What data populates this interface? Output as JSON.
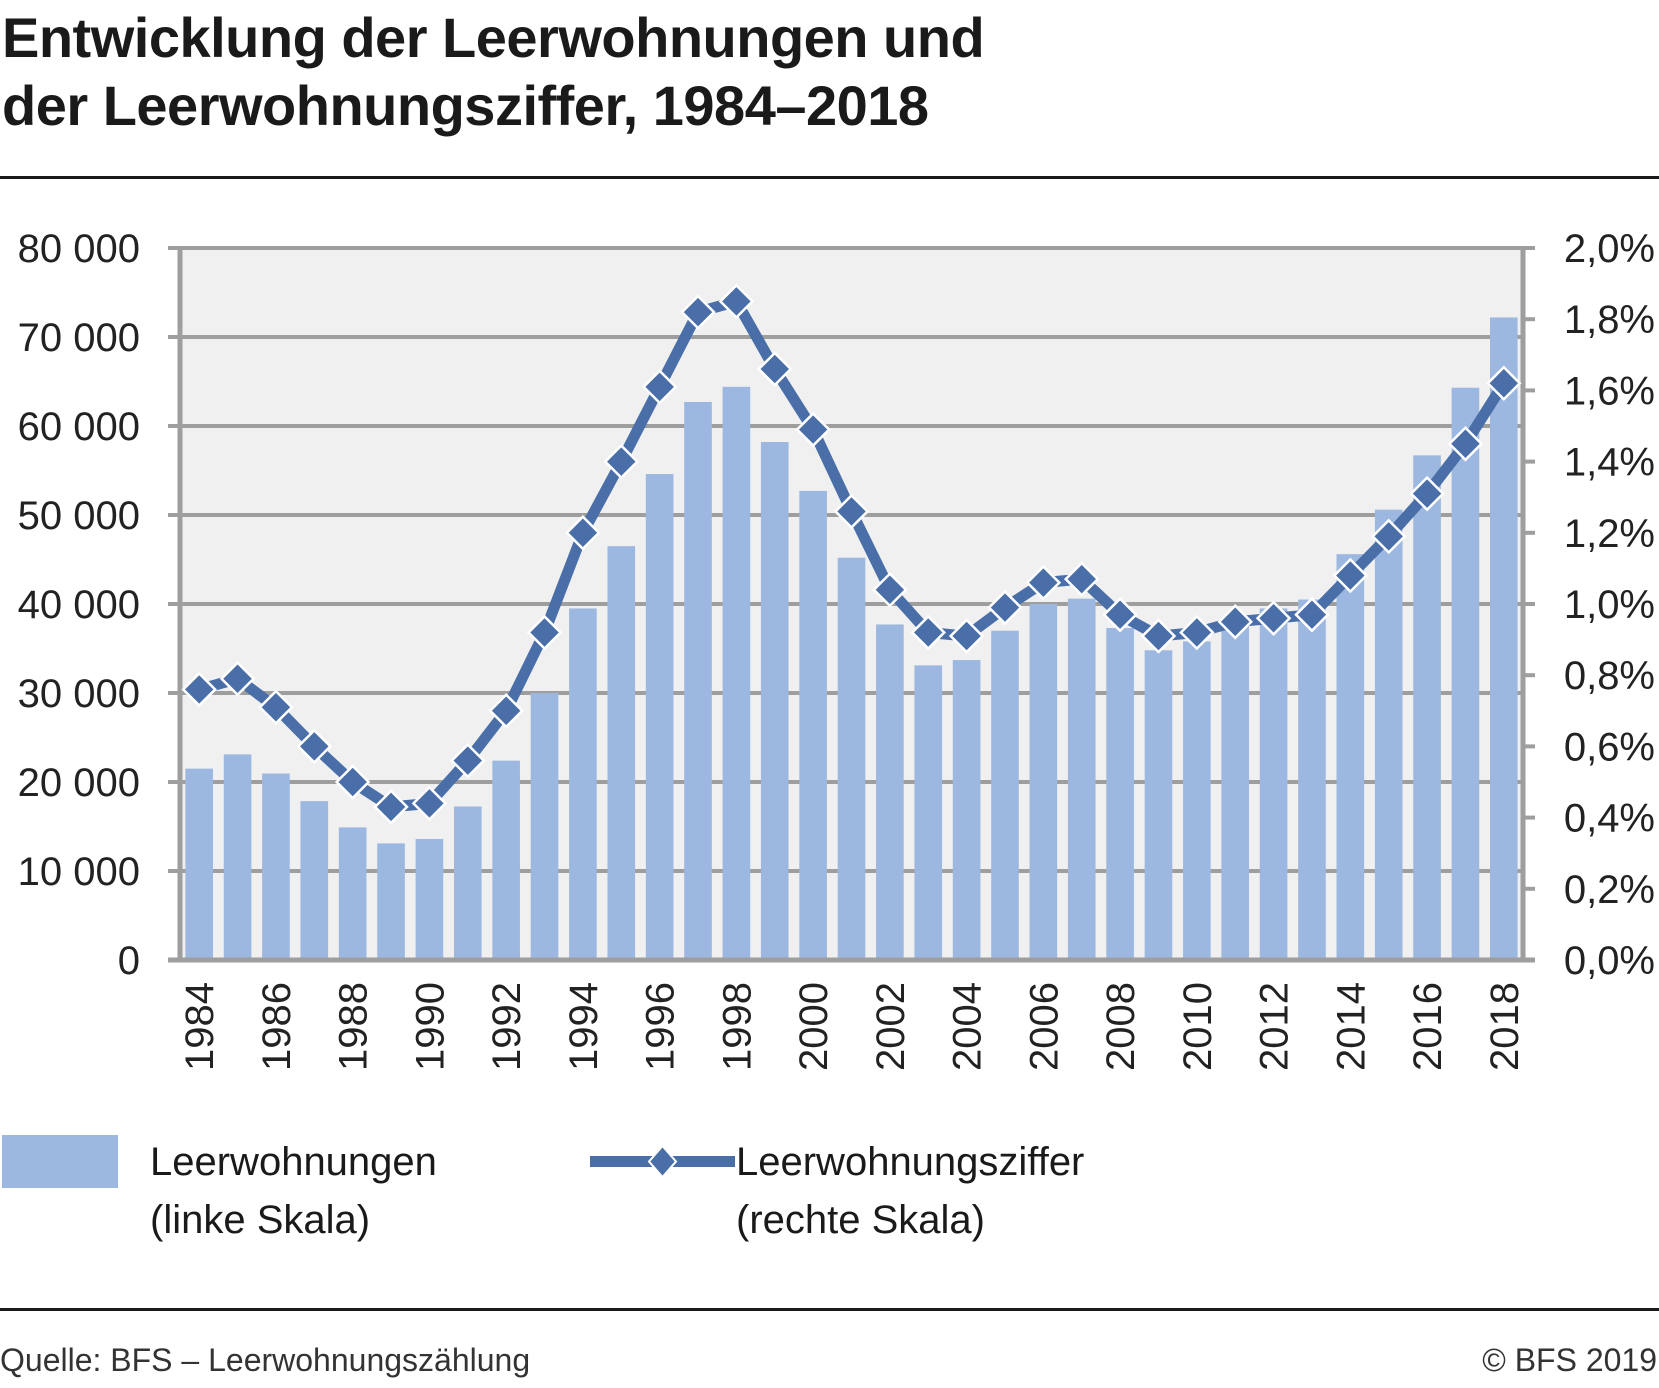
{
  "title_line1": "Entwicklung der Leerwohnungen und",
  "title_line2": "der Leerwohnungsziffer, 1984–2018",
  "legend": {
    "bars_label": "Leerwohnungen",
    "bars_sublabel": "(linke Skala)",
    "line_label": "Leerwohnungsziffer",
    "line_sublabel": "(rechte Skala)"
  },
  "footer": {
    "source": "Quelle: BFS – Leerwohnungszählung",
    "copyright": "© BFS 2019"
  },
  "colors": {
    "bars": "#9db8e0",
    "line": "#4a6fa8",
    "plot_bg": "#f0f0f0",
    "grid": "#9e9e9e"
  },
  "chart_data": {
    "type": "bar+line",
    "title": "Entwicklung der Leerwohnungen und der Leerwohnungsziffer, 1984–2018",
    "categories": [
      1984,
      1985,
      1986,
      1987,
      1988,
      1989,
      1990,
      1991,
      1992,
      1993,
      1994,
      1995,
      1996,
      1997,
      1998,
      1999,
      2000,
      2001,
      2002,
      2003,
      2004,
      2005,
      2006,
      2007,
      2008,
      2009,
      2010,
      2011,
      2012,
      2013,
      2014,
      2015,
      2016,
      2017,
      2018
    ],
    "x_tick_labels": [
      "1984",
      "1986",
      "1988",
      "1990",
      "1992",
      "1994",
      "1996",
      "1998",
      "2000",
      "2002",
      "2004",
      "2006",
      "2008",
      "2010",
      "2012",
      "2014",
      "2016",
      "2018"
    ],
    "series": [
      {
        "name": "Leerwohnungen (linke Skala)",
        "type": "bar",
        "axis": "left",
        "values": [
          21500,
          23100,
          20950,
          17850,
          14900,
          13100,
          13600,
          17250,
          22400,
          30000,
          39500,
          46500,
          54600,
          62700,
          64400,
          58200,
          52700,
          45200,
          37700,
          33100,
          33700,
          37000,
          40000,
          40600,
          37300,
          34800,
          35800,
          38500,
          39500,
          40500,
          45600,
          50600,
          56700,
          64300,
          72200
        ]
      },
      {
        "name": "Leerwohnungsziffer (rechte Skala)",
        "type": "line",
        "axis": "right",
        "unit": "%",
        "values": [
          0.76,
          0.79,
          0.71,
          0.6,
          0.5,
          0.43,
          0.44,
          0.56,
          0.7,
          0.92,
          1.2,
          1.4,
          1.61,
          1.82,
          1.85,
          1.66,
          1.49,
          1.26,
          1.04,
          0.92,
          0.91,
          0.99,
          1.06,
          1.07,
          0.97,
          0.91,
          0.92,
          0.95,
          0.96,
          0.97,
          1.08,
          1.19,
          1.31,
          1.45,
          1.62
        ]
      }
    ],
    "y_left": {
      "ylim": [
        0,
        80000
      ],
      "tick_labels": [
        "0",
        "10 000",
        "20 000",
        "30 000",
        "40 000",
        "50 000",
        "60 000",
        "70 000",
        "80 000"
      ]
    },
    "y_right": {
      "ylim": [
        0,
        2.0
      ],
      "tick_labels": [
        "0,0%",
        "0,2%",
        "0,4%",
        "0,6%",
        "0,8%",
        "1,0%",
        "1,2%",
        "1,4%",
        "1,6%",
        "1,8%",
        "2,0%"
      ]
    },
    "grid": true,
    "legend_position": "bottom"
  }
}
